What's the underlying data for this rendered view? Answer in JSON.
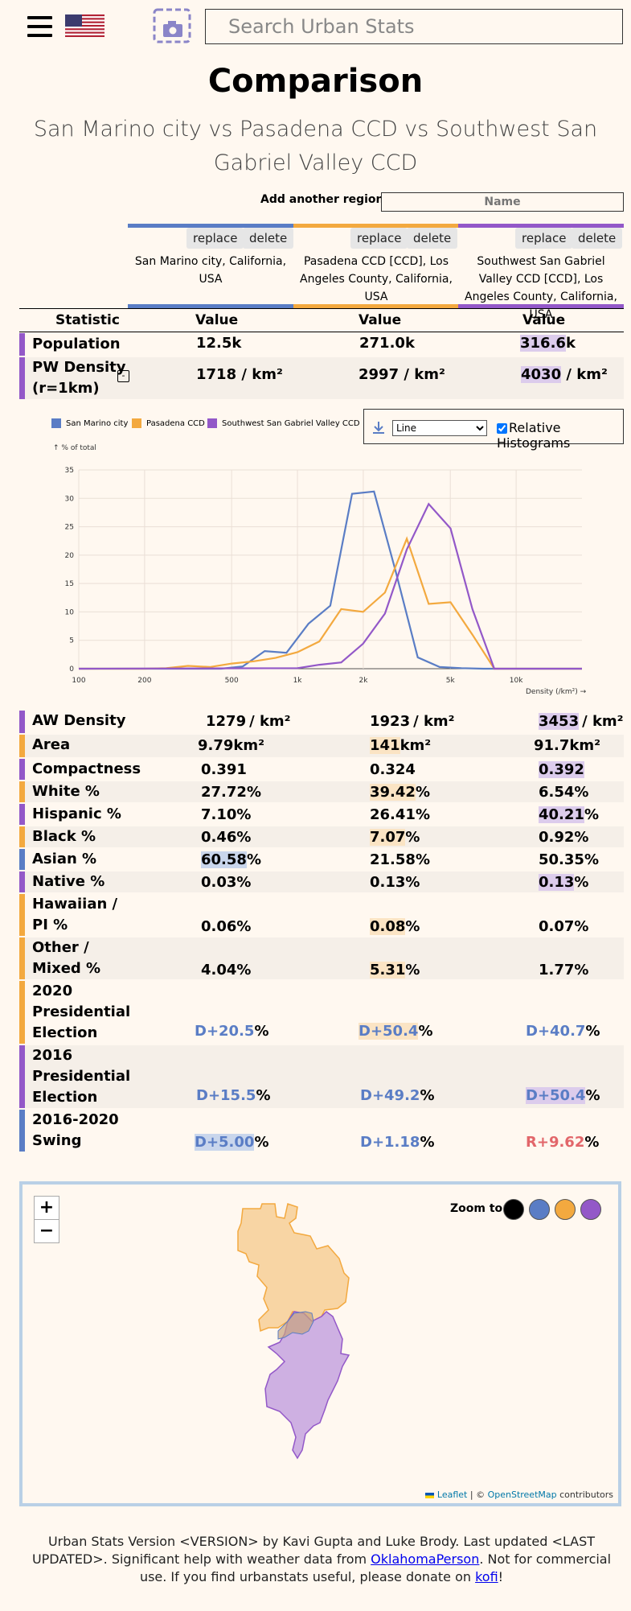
{
  "header": {
    "search_placeholder": "Search Urban Stats"
  },
  "page": {
    "title": "Comparison",
    "subtitle": "San Marino city vs Pasadena CCD vs Southwest San Gabriel Valley CCD"
  },
  "add_region": {
    "label": "Add another region:",
    "placeholder": "Name"
  },
  "colors": {
    "blue": "#5a7dc5",
    "orange": "#f3a93f",
    "purple": "#9358c8",
    "background": "#fff8f0"
  },
  "columns": [
    {
      "replace": "replace",
      "delete": "delete",
      "name": "San Marino city, California, USA",
      "color": "#5a7dc5"
    },
    {
      "replace": "replace",
      "delete": "delete",
      "name": "Pasadena CCD [CCD], Los Angeles County, California, USA",
      "color": "#f3a93f"
    },
    {
      "replace": "replace",
      "delete": "delete",
      "name": "Southwest San Gabriel Valley CCD [CCD], Los Angeles County, California, USA",
      "color": "#9358c8"
    }
  ],
  "table_header": {
    "statistic": "Statistic",
    "value": "Value"
  },
  "stats": {
    "population": {
      "label": "Population",
      "v": [
        "12.5",
        "271.0",
        "316.6"
      ],
      "unit": "k"
    },
    "pw_density": {
      "label": "PW Density (r=1km)",
      "toggle": "-",
      "v": [
        "1718",
        "2997",
        "4030"
      ],
      "unit": "/ km²"
    },
    "aw_density": {
      "label": "AW Density",
      "v": [
        "1279",
        "1923",
        "3453"
      ],
      "unit": "/ km²"
    },
    "area": {
      "label": "Area",
      "v": [
        "9.79",
        "141",
        "91.7"
      ],
      "unit": "km²"
    },
    "compactness": {
      "label": "Compactness",
      "v": [
        "0.391",
        "0.324",
        "0.392"
      ]
    },
    "white": {
      "label": "White %",
      "v": [
        "27.72",
        "39.42",
        "6.54"
      ],
      "unit": "%"
    },
    "hispanic": {
      "label": "Hispanic %",
      "v": [
        "7.10",
        "26.41",
        "40.21"
      ],
      "unit": "%"
    },
    "black": {
      "label": "Black %",
      "v": [
        "0.46",
        "7.07",
        "0.92"
      ],
      "unit": "%"
    },
    "asian": {
      "label": "Asian %",
      "v": [
        "60.58",
        "21.58",
        "50.35"
      ],
      "unit": "%"
    },
    "native": {
      "label": "Native %",
      "v": [
        "0.03",
        "0.13",
        "0.13"
      ],
      "unit": "%"
    },
    "hawaiian": {
      "label": "Hawaiian / PI %",
      "v": [
        "0.06",
        "0.08",
        "0.07"
      ],
      "unit": "%"
    },
    "other": {
      "label": "Other / Mixed %",
      "v": [
        "4.04",
        "5.31",
        "1.77"
      ],
      "unit": "%"
    },
    "pres2020": {
      "label": "2020 Presidential Election",
      "v": [
        "D+20.5",
        "D+50.4",
        "D+40.7"
      ],
      "unit": "%"
    },
    "pres2016": {
      "label": "2016 Presidential Election",
      "v": [
        "D+15.5",
        "D+49.2",
        "D+50.4"
      ],
      "unit": "%"
    },
    "swing": {
      "label": "2016-2020 Swing",
      "v": [
        "D+5.00",
        "D+1.18",
        "R+9.62"
      ],
      "unit": "%"
    }
  },
  "histogram_controls": {
    "select_value": "Line",
    "relative_label": "Relative Histograms",
    "relative_checked": true
  },
  "chart_data": {
    "type": "line",
    "xscale": "log",
    "ylabel": "% of total",
    "xlabel": "Density (/km²)",
    "x_ticks": [
      "100",
      "200",
      "500",
      "1k",
      "2k",
      "5k",
      "10k"
    ],
    "x_tick_values": [
      100,
      200,
      500,
      1000,
      2000,
      5000,
      10000
    ],
    "y_ticks": [
      0,
      5,
      10,
      15,
      20,
      25,
      30,
      35
    ],
    "ylim": [
      0,
      35
    ],
    "xlim": [
      100,
      20000
    ],
    "grid": true,
    "legend": "top-left",
    "series": [
      {
        "name": "San Marino city",
        "color": "#5a7dc5",
        "x": [
          100,
          282,
          355,
          447,
          562,
          708,
          891,
          1122,
          1413,
          1778,
          2239,
          2818,
          3548,
          4467,
          5623,
          7079,
          8913,
          11220,
          20000
        ],
        "y": [
          0,
          0,
          0,
          0,
          0.4,
          3.1,
          2.8,
          7.9,
          11.1,
          30.8,
          31.2,
          17.0,
          2.0,
          0.3,
          0.1,
          0,
          0,
          0,
          0
        ]
      },
      {
        "name": "Pasadena CCD",
        "color": "#f3a93f",
        "x": [
          100,
          200,
          251,
          316,
          398,
          501,
          631,
          794,
          1000,
          1259,
          1585,
          1995,
          2512,
          3162,
          3981,
          5012,
          6310,
          7943,
          20000
        ],
        "y": [
          0,
          0,
          0.1,
          0.5,
          0.3,
          0.9,
          1.3,
          1.9,
          2.9,
          4.8,
          10.5,
          10.0,
          13.4,
          22.9,
          11.4,
          11.7,
          6.0,
          0,
          0
        ]
      },
      {
        "name": "Southwest San Gabriel Valley CCD",
        "color": "#9358c8",
        "x": [
          100,
          1000,
          1259,
          1585,
          1995,
          2512,
          3162,
          3981,
          5012,
          6310,
          7943,
          20000
        ],
        "y": [
          0,
          0.1,
          0.7,
          1.1,
          4.4,
          9.7,
          21.0,
          29.0,
          24.7,
          10.5,
          0,
          0
        ]
      }
    ]
  },
  "map": {
    "zoom_in": "+",
    "zoom_out": "−",
    "zoom_to_label": "Zoom to:",
    "attribution_leaflet": "Leaflet",
    "attribution_sep": " | © ",
    "attribution_osm": "OpenStreetMap",
    "attribution_suffix": " contributors"
  },
  "footer": {
    "text1": "Urban Stats Version <VERSION> by Kavi Gupta and Luke Brody. Last updated <LAST UPDATED>. Significant help with weather data from ",
    "link1": "OklahomaPerson",
    "text2": ". Not for commercial use. If you find urbanstats useful, please donate on ",
    "link2": "kofi",
    "text3": "!"
  }
}
